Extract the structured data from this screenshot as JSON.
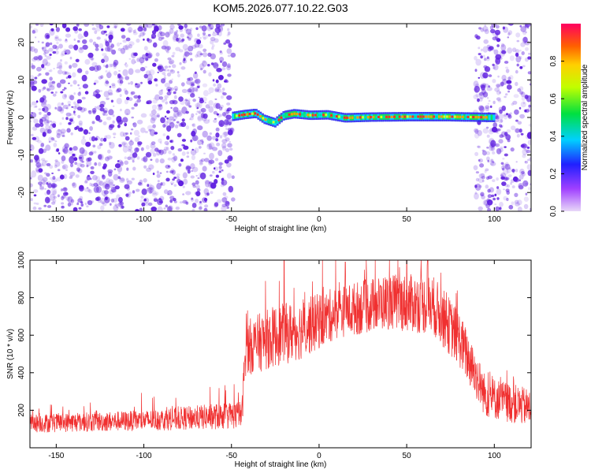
{
  "title": "KOM5.2026.077.10.22.G03",
  "colors": {
    "snr_line": "#f03030",
    "noise_purple": "#6020e0",
    "background": "#ffffff",
    "axis": "#000000"
  },
  "chart_data": [
    {
      "type": "heatmap",
      "title": "KOM5.2026.077.10.22.G03",
      "xlabel": "Height of straight line (km)",
      "ylabel": "Frequency (Hz)",
      "xlim": [
        -165,
        121
      ],
      "ylim": [
        -25,
        25
      ],
      "x_ticks": [
        -150,
        -100,
        -50,
        0,
        50,
        100
      ],
      "x_tick_labels": [
        "-150",
        "-100",
        "-50",
        "0",
        "50",
        "100"
      ],
      "y_ticks": [
        -20,
        -10,
        0,
        10,
        20
      ],
      "y_tick_labels": [
        "-20",
        "-10",
        "0",
        "10",
        "20"
      ],
      "noise_regions_km": [
        [
          -165,
          -49
        ],
        [
          89,
          121
        ]
      ],
      "signal_track": {
        "x_range_km": [
          -49,
          100
        ],
        "frequency_hz": [
          {
            "x": -49,
            "f": 0.3
          },
          {
            "x": -42,
            "f": 0.8
          },
          {
            "x": -36,
            "f": 1.1
          },
          {
            "x": -31,
            "f": -0.5
          },
          {
            "x": -25,
            "f": -1.4
          },
          {
            "x": -20,
            "f": 0.5
          },
          {
            "x": -14,
            "f": 1.0
          },
          {
            "x": -5,
            "f": 0.6
          },
          {
            "x": 5,
            "f": 0.7
          },
          {
            "x": 15,
            "f": -0.1
          },
          {
            "x": 30,
            "f": 0.1
          },
          {
            "x": 50,
            "f": 0.2
          },
          {
            "x": 75,
            "f": 0.2
          },
          {
            "x": 100,
            "f": 0.0
          }
        ]
      },
      "colorbar": {
        "label": "Normalized spectral amplitude",
        "range": [
          0,
          1
        ],
        "ticks": [
          0.0,
          0.2,
          0.4,
          0.6,
          0.8
        ],
        "tick_labels": [
          "0.0",
          "0.2",
          "0.4",
          "0.6",
          "0.8"
        ]
      }
    },
    {
      "type": "line",
      "xlabel": "Height of straight line (km)",
      "ylabel": "SNR (10 * v/v)",
      "xlim": [
        -165,
        121
      ],
      "ylim": [
        0,
        1000
      ],
      "x_ticks": [
        -150,
        -100,
        -50,
        0,
        50,
        100
      ],
      "x_tick_labels": [
        "-150",
        "-100",
        "-50",
        "0",
        "50",
        "100"
      ],
      "y_ticks": [
        200,
        400,
        600,
        800,
        1000
      ],
      "y_tick_labels": [
        "200",
        "400",
        "600",
        "800",
        "1000"
      ],
      "series": [
        {
          "name": "SNR",
          "envelope": [
            {
              "x": -165,
              "base": 80,
              "spread": 100
            },
            {
              "x": -100,
              "base": 90,
              "spread": 110
            },
            {
              "x": -44,
              "base": 100,
              "spread": 150
            },
            {
              "x": -42,
              "base": 380,
              "spread": 300
            },
            {
              "x": -25,
              "base": 430,
              "spread": 330
            },
            {
              "x": -10,
              "base": 470,
              "spread": 320
            },
            {
              "x": 10,
              "base": 580,
              "spread": 280
            },
            {
              "x": 40,
              "base": 630,
              "spread": 300
            },
            {
              "x": 65,
              "base": 600,
              "spread": 320
            },
            {
              "x": 80,
              "base": 430,
              "spread": 300
            },
            {
              "x": 95,
              "base": 160,
              "spread": 230
            },
            {
              "x": 121,
              "base": 110,
              "spread": 200
            }
          ],
          "peaks": [
            {
              "x": -20,
              "y": 1000
            },
            {
              "x": 15,
              "y": 990
            },
            {
              "x": 50,
              "y": 1000
            },
            {
              "x": 62,
              "y": 1000
            }
          ]
        }
      ]
    }
  ]
}
